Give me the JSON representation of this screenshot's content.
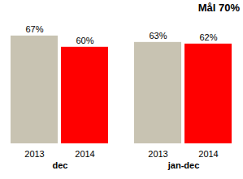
{
  "chart_data": {
    "type": "bar",
    "annotation": "Mål 70%",
    "categories": [
      "dec",
      "jan-dec"
    ],
    "series": [
      {
        "name": "2013",
        "color": "#c8c3b2",
        "values": [
          67,
          63
        ],
        "value_labels": [
          "67%",
          "63%"
        ]
      },
      {
        "name": "2014",
        "color": "#ff0000",
        "values": [
          60,
          62
        ],
        "value_labels": [
          "60%",
          "62%"
        ]
      }
    ],
    "ylim": [
      0,
      75
    ],
    "grid": false,
    "data_labels": true,
    "tick_labels": "x"
  }
}
